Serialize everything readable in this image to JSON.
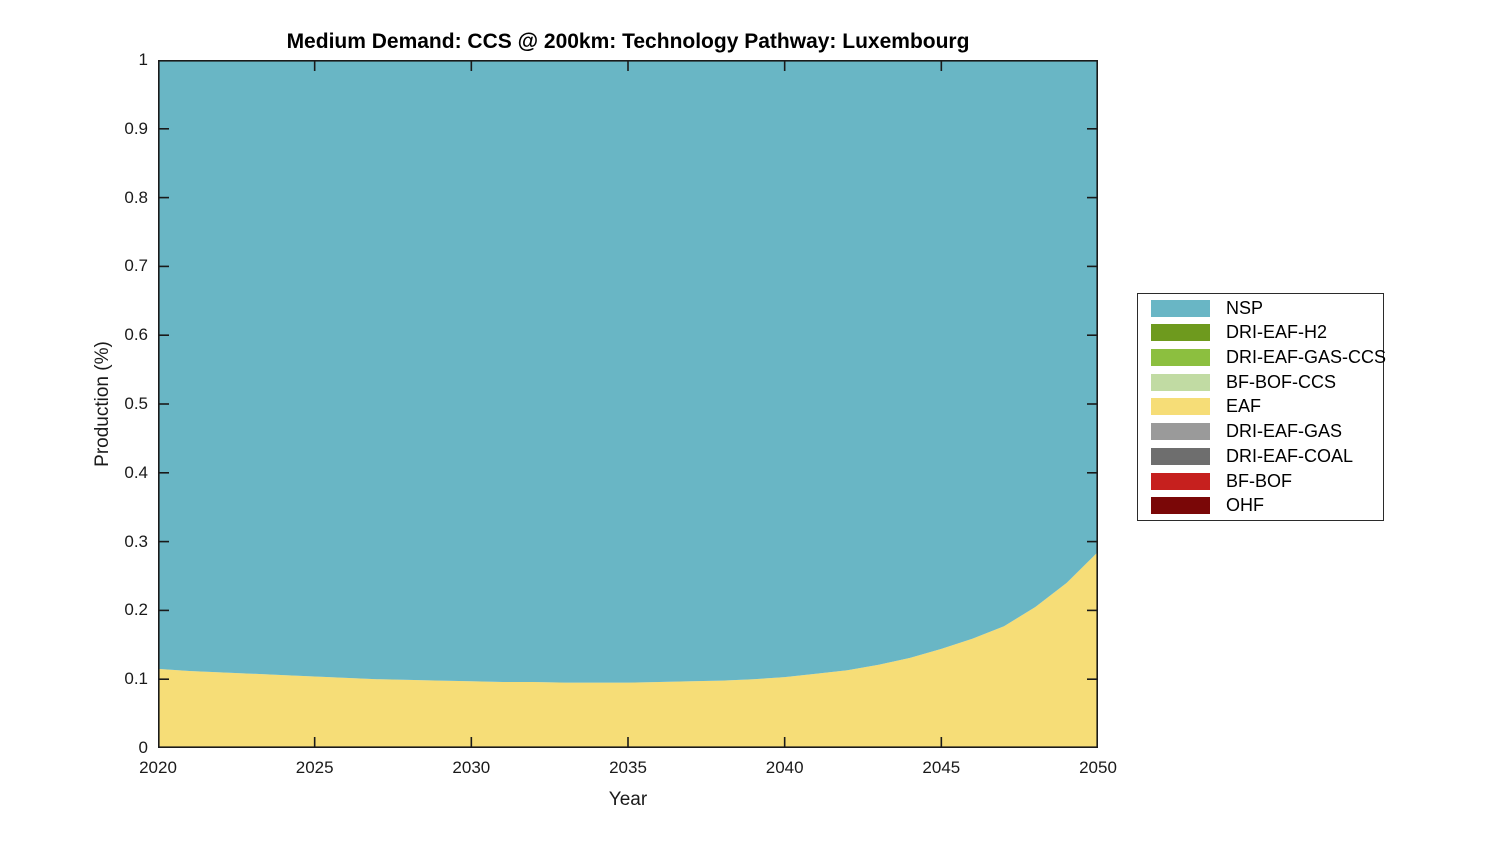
{
  "figure": {
    "title": "Medium Demand: CCS @ 200km: Technology Pathway: Luxembourg",
    "xlabel": "Year",
    "ylabel": "Production (%)"
  },
  "chart_data": {
    "type": "area",
    "stacking": "stacked to 1.0; bottom-to-top stack order is the reverse of legend order",
    "title": "Medium Demand: CCS @ 200km: Technology Pathway: Luxembourg",
    "xlabel": "Year",
    "ylabel": "Production (%)",
    "xlim": [
      2020,
      2050
    ],
    "ylim": [
      0,
      1
    ],
    "grid": false,
    "legend_position": "outside right",
    "x_tick_labels": [
      "2020",
      "2025",
      "2030",
      "2035",
      "2040",
      "2045",
      "2050"
    ],
    "x_tick_values": [
      2020,
      2025,
      2030,
      2035,
      2040,
      2045,
      2050
    ],
    "y_tick_labels": [
      "0",
      "0.1",
      "0.2",
      "0.3",
      "0.4",
      "0.5",
      "0.6",
      "0.7",
      "0.8",
      "0.9",
      "1"
    ],
    "y_tick_values": [
      0,
      0.1,
      0.2,
      0.3,
      0.4,
      0.5,
      0.6,
      0.7,
      0.8,
      0.9,
      1
    ],
    "x": [
      2020,
      2021,
      2022,
      2023,
      2024,
      2025,
      2026,
      2027,
      2028,
      2029,
      2030,
      2031,
      2032,
      2033,
      2034,
      2035,
      2036,
      2037,
      2038,
      2039,
      2040,
      2041,
      2042,
      2043,
      2044,
      2045,
      2046,
      2047,
      2048,
      2049,
      2050
    ],
    "series": [
      {
        "name": "NSP",
        "color": "#69b6c5",
        "values": [
          0.885,
          0.888,
          0.89,
          0.892,
          0.894,
          0.896,
          0.898,
          0.9,
          0.901,
          0.902,
          0.903,
          0.904,
          0.904,
          0.905,
          0.905,
          0.905,
          0.904,
          0.903,
          0.902,
          0.9,
          0.897,
          0.892,
          0.887,
          0.879,
          0.869,
          0.856,
          0.841,
          0.823,
          0.795,
          0.76,
          0.715
        ]
      },
      {
        "name": "DRI-EAF-H2",
        "color": "#6e9a1e",
        "values": 0
      },
      {
        "name": "DRI-EAF-GAS-CCS",
        "color": "#8cbf3f",
        "values": 0
      },
      {
        "name": "BF-BOF-CCS",
        "color": "#c1dba3",
        "values": 0
      },
      {
        "name": "EAF",
        "color": "#f6dd77",
        "values": [
          0.115,
          0.112,
          0.11,
          0.108,
          0.106,
          0.104,
          0.102,
          0.1,
          0.099,
          0.098,
          0.097,
          0.096,
          0.096,
          0.095,
          0.095,
          0.095,
          0.096,
          0.097,
          0.098,
          0.1,
          0.103,
          0.108,
          0.113,
          0.121,
          0.131,
          0.144,
          0.159,
          0.177,
          0.205,
          0.24,
          0.285
        ]
      },
      {
        "name": "DRI-EAF-GAS",
        "color": "#9a9a9a",
        "values": 0
      },
      {
        "name": "DRI-EAF-COAL",
        "color": "#6e6e6e",
        "values": 0
      },
      {
        "name": "BF-BOF",
        "color": "#c6201e",
        "values": 0
      },
      {
        "name": "OHF",
        "color": "#7a0707",
        "values": 0
      }
    ],
    "axis_color": "#1a1a1a",
    "plot_background": "#ffffff"
  }
}
